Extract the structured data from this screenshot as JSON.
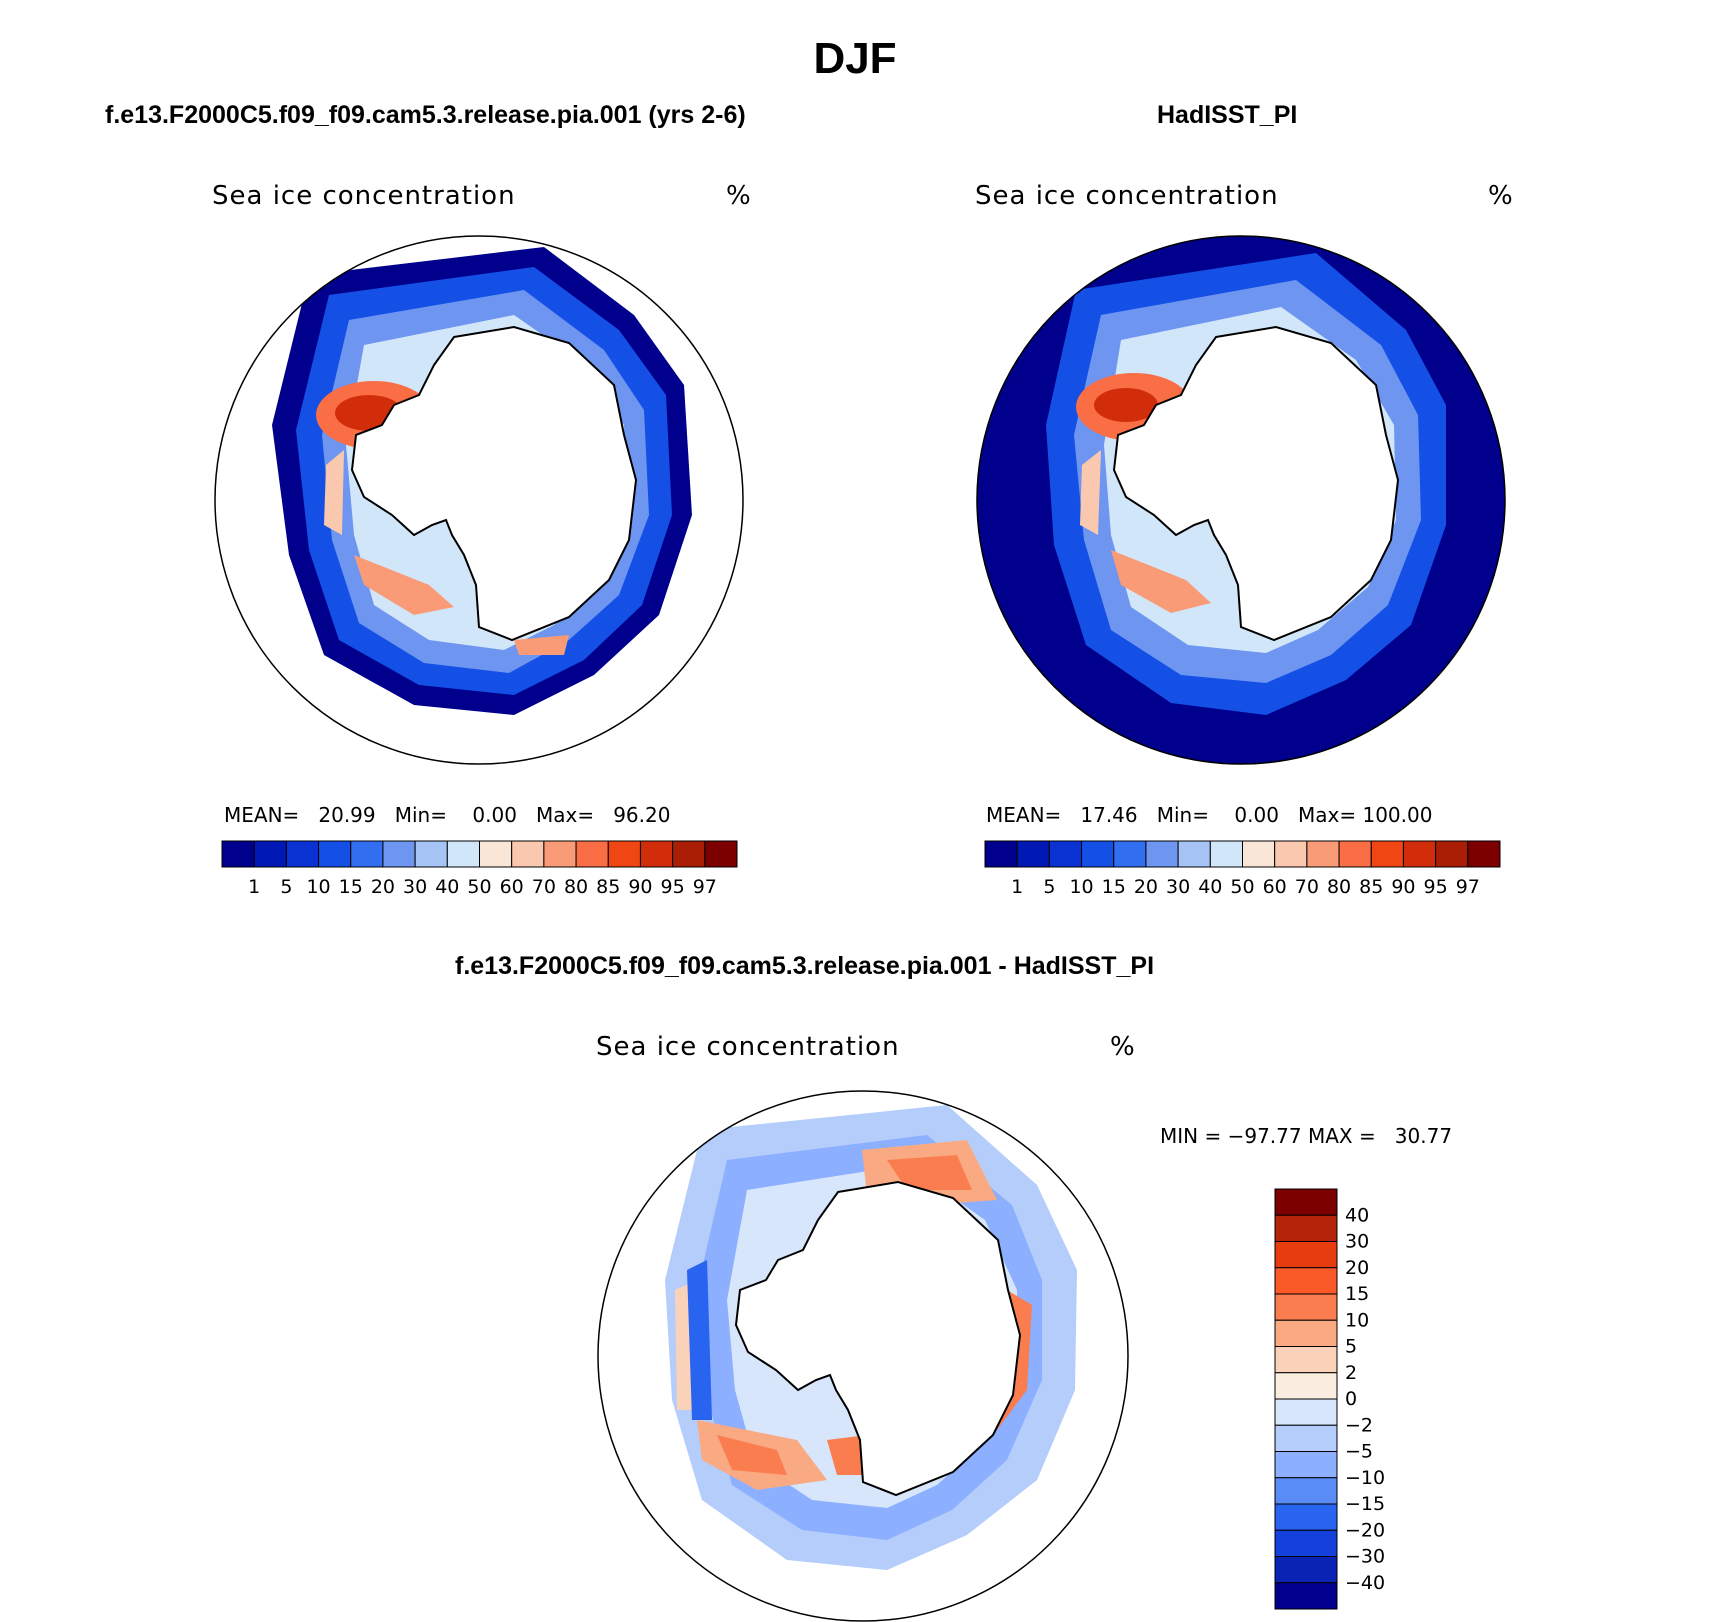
{
  "figure": {
    "title": "DJF"
  },
  "panels": [
    {
      "id": "model",
      "title": "f.e13.F2000C5.f09_f09.cam5.3.release.pia.001 (yrs 2-6)",
      "variable": "Sea ice concentration",
      "units": "%",
      "stats": {
        "mean_label": "MEAN=",
        "mean": "20.99",
        "min_label": "Min=",
        "min": "0.00",
        "max_label": "Max=",
        "max": "96.20"
      }
    },
    {
      "id": "obs",
      "title": "HadISST_PI",
      "variable": "Sea ice concentration",
      "units": "%",
      "stats": {
        "mean_label": "MEAN=",
        "mean": "17.46",
        "min_label": "Min=",
        "min": "0.00",
        "max_label": "Max=",
        "max": "100.00"
      }
    },
    {
      "id": "diff",
      "title": "f.e13.F2000C5.f09_f09.cam5.3.release.pia.001 - HadISST_PI",
      "variable": "Sea ice concentration",
      "units": "%",
      "stats_text": "MIN = −97.77 MAX =   30.77"
    }
  ],
  "colorbars": {
    "sequential": {
      "labels": [
        "1",
        "5",
        "10",
        "15",
        "20",
        "30",
        "40",
        "50",
        "60",
        "70",
        "80",
        "85",
        "90",
        "95",
        "97"
      ],
      "colors": [
        "#00008c",
        "#0018b4",
        "#0a32d2",
        "#1450e6",
        "#326ef0",
        "#6e96f0",
        "#a5c3f5",
        "#d2e6fa",
        "#fae6d7",
        "#fac8af",
        "#fa9b78",
        "#fa6e46",
        "#f04614",
        "#d22d0a",
        "#aa1e05",
        "#7d0000"
      ]
    },
    "diverging": {
      "labels": [
        "40",
        "30",
        "20",
        "15",
        "10",
        "5",
        "2",
        "0",
        "−2",
        "−5",
        "−10",
        "−15",
        "−20",
        "−30",
        "−40"
      ],
      "colors": [
        "#7d0000",
        "#b4230a",
        "#e63c0f",
        "#fa5a28",
        "#fa7d50",
        "#faaa82",
        "#fad2b9",
        "#faeee1",
        "#d7e6fa",
        "#b4cdfa",
        "#8cafff",
        "#5a8cf5",
        "#2864f0",
        "#1441dc",
        "#0a23b4",
        "#00008c"
      ]
    }
  }
}
